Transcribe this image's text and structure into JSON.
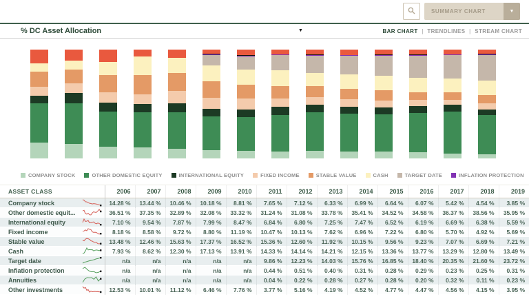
{
  "toolbar": {
    "summary_chart_label": "SUMMARY CHART",
    "dropdown_caret": "▼"
  },
  "chart_header": {
    "title": "% DC Asset Allocation",
    "caret": "▼",
    "separator": "|",
    "views": [
      {
        "label": "BAR CHART",
        "active": true
      },
      {
        "label": "TRENDLINES",
        "active": false
      },
      {
        "label": "STREAM CHART",
        "active": false
      }
    ]
  },
  "chart_data": {
    "type": "bar",
    "stacked": true,
    "value_unit": "%",
    "ylim": [
      0,
      100
    ],
    "legend_position": "bottom",
    "categories": [
      "2006",
      "2007",
      "2008",
      "2009",
      "2010",
      "2011",
      "2012",
      "2013",
      "2014",
      "2015",
      "2016",
      "2017",
      "2018",
      "2019"
    ],
    "series": [
      {
        "legend_label": "COMPANY STOCK",
        "table_label": "Company stock",
        "color": "#b4d5ba",
        "trend": "red",
        "values": [
          14.28,
          13.44,
          10.46,
          10.18,
          8.81,
          7.65,
          7.12,
          6.33,
          6.99,
          6.64,
          6.07,
          5.42,
          4.54,
          3.85
        ]
      },
      {
        "legend_label": "OTHER DOMESTIC EQUITY",
        "table_label": "Other domestic equit...",
        "color": "#3e8c55",
        "trend": "red",
        "values": [
          36.51,
          37.35,
          32.89,
          32.08,
          33.32,
          31.24,
          31.08,
          33.78,
          35.41,
          34.52,
          34.58,
          36.37,
          38.56,
          35.95
        ]
      },
      {
        "legend_label": "INTERNATIONAL EQUITY",
        "table_label": "International equity",
        "color": "#1c3a24",
        "trend": "red",
        "values": [
          7.1,
          9.54,
          7.87,
          7.99,
          8.47,
          6.84,
          6.8,
          7.25,
          7.47,
          6.52,
          6.19,
          6.69,
          6.38,
          5.59
        ]
      },
      {
        "legend_label": "FIXED INCOME",
        "table_label": "Fixed income",
        "color": "#f4cbac",
        "trend": "red",
        "values": [
          8.18,
          8.58,
          9.72,
          8.8,
          11.19,
          10.47,
          10.13,
          7.62,
          6.96,
          7.22,
          6.8,
          5.7,
          4.92,
          5.69
        ]
      },
      {
        "legend_label": "STABLE VALUE",
        "table_label": "Stable value",
        "color": "#e49a66",
        "trend": "red",
        "values": [
          13.48,
          12.46,
          15.63,
          17.37,
          16.52,
          15.36,
          12.6,
          11.92,
          10.15,
          9.56,
          9.23,
          7.07,
          6.69,
          7.21
        ]
      },
      {
        "legend_label": "CASH",
        "table_label": "Cash",
        "color": "#fcf1bf",
        "trend": "green",
        "values": [
          7.93,
          8.62,
          12.3,
          17.13,
          13.91,
          14.33,
          14.14,
          14.21,
          12.15,
          13.36,
          13.77,
          13.29,
          12.8,
          13.49
        ]
      },
      {
        "legend_label": "TARGET DATE",
        "table_label": "Target date",
        "color": "#c5b7aa",
        "trend": "green",
        "values": [
          null,
          null,
          null,
          null,
          null,
          9.86,
          12.23,
          14.03,
          15.76,
          16.85,
          18.4,
          20.35,
          21.6,
          23.72
        ]
      },
      {
        "legend_label": "INFLATION PROTECTION",
        "table_label": "Inflation protection",
        "color": "#8233b4",
        "trend": "green",
        "values": [
          null,
          null,
          null,
          null,
          null,
          0.44,
          0.51,
          0.4,
          0.31,
          0.28,
          0.29,
          0.23,
          0.25,
          0.31
        ]
      },
      {
        "legend_label": "ANNUITIES",
        "table_label": "Annuities",
        "color": "#141414",
        "trend": "green",
        "values": [
          null,
          null,
          null,
          null,
          null,
          0.04,
          0.22,
          0.28,
          0.27,
          0.28,
          0.2,
          0.32,
          0.11,
          0.23
        ]
      },
      {
        "legend_label": "OTHER INVESTMENTS",
        "table_label": "Other investments",
        "color": "#e9593e",
        "trend": "red",
        "values": [
          12.53,
          10.01,
          11.12,
          6.46,
          7.76,
          3.77,
          5.16,
          4.19,
          4.52,
          4.77,
          4.47,
          4.56,
          4.15,
          3.95
        ]
      }
    ]
  },
  "table": {
    "asset_class_header": "ASSET CLASS",
    "na_label": "n/a",
    "value_suffix": " %"
  },
  "colors": {
    "accent_green": "#2d4a38",
    "divider_green": "#40604c",
    "beige": "#ddd5c6",
    "beige_dark": "#b9ae9a",
    "row_shade": "#e8eeef",
    "spark_red": "#d65f57",
    "spark_green": "#58a05f"
  }
}
